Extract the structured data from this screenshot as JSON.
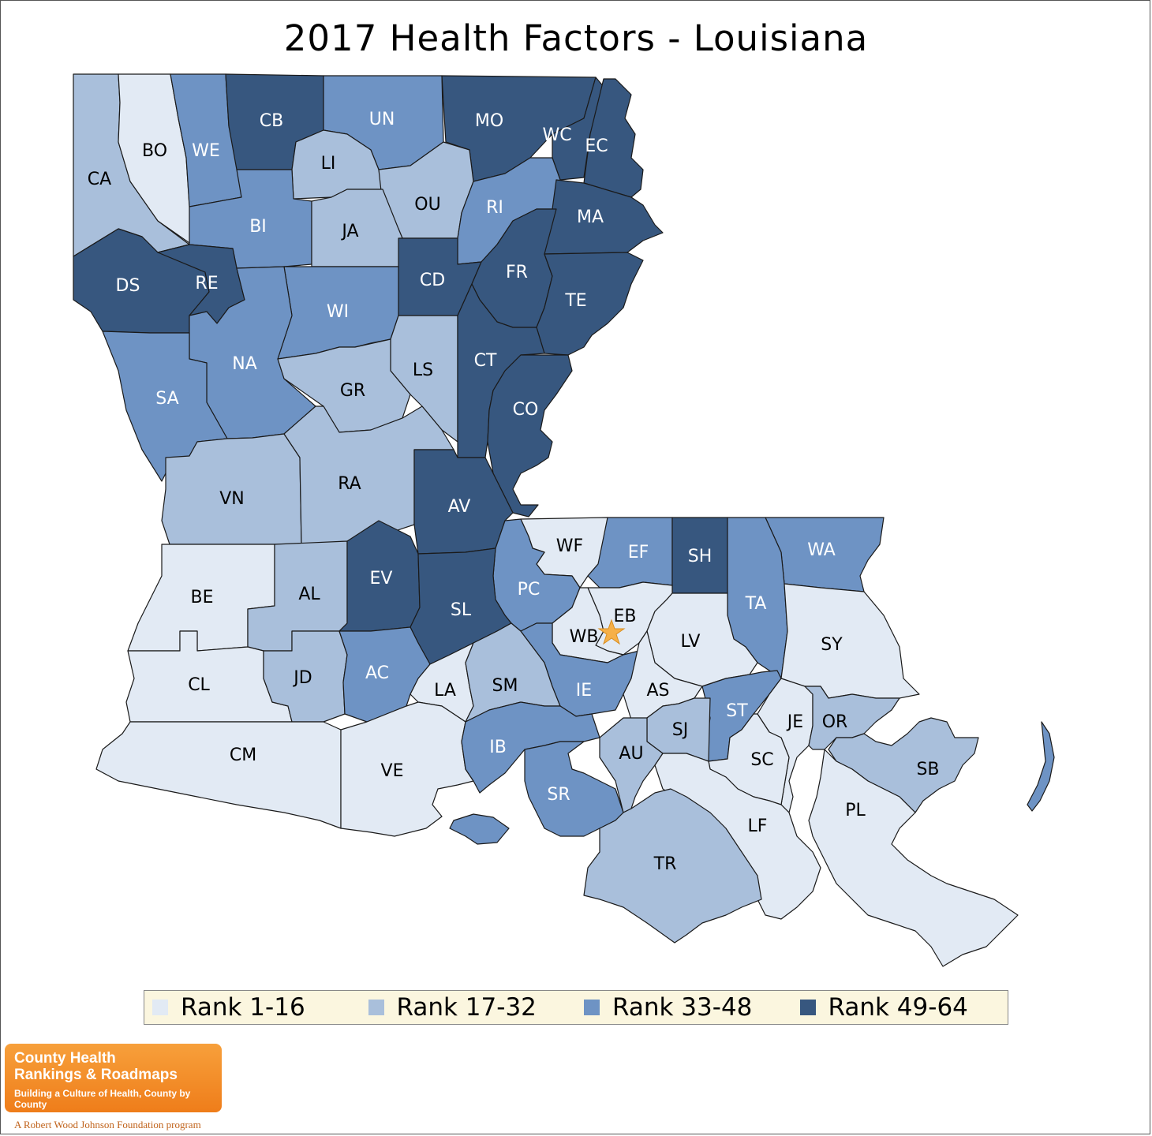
{
  "title": "2017 Health Factors - Louisiana",
  "colors": {
    "rank_1_16": "#e2eaf4",
    "rank_17_32": "#a9bfdb",
    "rank_33_48": "#6e93c4",
    "rank_49_64": "#37577f",
    "marker": "#f6b048"
  },
  "legend": [
    {
      "label": "Rank 1-16",
      "color": "#e2eaf4"
    },
    {
      "label": "Rank 17-32",
      "color": "#a9bfdb"
    },
    {
      "label": "Rank 33-48",
      "color": "#6e93c4"
    },
    {
      "label": "Rank 49-64",
      "color": "#37577f"
    }
  ],
  "parishes": [
    {
      "abbr": "CA",
      "rank_group": "17-32"
    },
    {
      "abbr": "BO",
      "rank_group": "1-16"
    },
    {
      "abbr": "WE",
      "rank_group": "33-48"
    },
    {
      "abbr": "CB",
      "rank_group": "49-64"
    },
    {
      "abbr": "UN",
      "rank_group": "33-48"
    },
    {
      "abbr": "MO",
      "rank_group": "49-64"
    },
    {
      "abbr": "WC",
      "rank_group": "49-64"
    },
    {
      "abbr": "EC",
      "rank_group": "49-64"
    },
    {
      "abbr": "LI",
      "rank_group": "17-32"
    },
    {
      "abbr": "OU",
      "rank_group": "17-32"
    },
    {
      "abbr": "RI",
      "rank_group": "33-48"
    },
    {
      "abbr": "MA",
      "rank_group": "49-64"
    },
    {
      "abbr": "BI",
      "rank_group": "33-48"
    },
    {
      "abbr": "JA",
      "rank_group": "17-32"
    },
    {
      "abbr": "DS",
      "rank_group": "49-64"
    },
    {
      "abbr": "RE",
      "rank_group": "49-64"
    },
    {
      "abbr": "CD",
      "rank_group": "49-64"
    },
    {
      "abbr": "FR",
      "rank_group": "49-64"
    },
    {
      "abbr": "TE",
      "rank_group": "49-64"
    },
    {
      "abbr": "WI",
      "rank_group": "33-48"
    },
    {
      "abbr": "NA",
      "rank_group": "33-48"
    },
    {
      "abbr": "LS",
      "rank_group": "17-32"
    },
    {
      "abbr": "CT",
      "rank_group": "49-64"
    },
    {
      "abbr": "SA",
      "rank_group": "33-48"
    },
    {
      "abbr": "GR",
      "rank_group": "17-32"
    },
    {
      "abbr": "CO",
      "rank_group": "49-64"
    },
    {
      "abbr": "VN",
      "rank_group": "17-32"
    },
    {
      "abbr": "RA",
      "rank_group": "17-32"
    },
    {
      "abbr": "AV",
      "rank_group": "49-64"
    },
    {
      "abbr": "WF",
      "rank_group": "1-16"
    },
    {
      "abbr": "EF",
      "rank_group": "33-48"
    },
    {
      "abbr": "SH",
      "rank_group": "49-64"
    },
    {
      "abbr": "WA",
      "rank_group": "33-48"
    },
    {
      "abbr": "BE",
      "rank_group": "1-16"
    },
    {
      "abbr": "AL",
      "rank_group": "17-32"
    },
    {
      "abbr": "EV",
      "rank_group": "49-64"
    },
    {
      "abbr": "PC",
      "rank_group": "33-48"
    },
    {
      "abbr": "EB",
      "rank_group": "1-16"
    },
    {
      "abbr": "TA",
      "rank_group": "33-48"
    },
    {
      "abbr": "SL",
      "rank_group": "49-64"
    },
    {
      "abbr": "WB",
      "rank_group": "1-16"
    },
    {
      "abbr": "LV",
      "rank_group": "1-16"
    },
    {
      "abbr": "SY",
      "rank_group": "1-16"
    },
    {
      "abbr": "CL",
      "rank_group": "1-16"
    },
    {
      "abbr": "JD",
      "rank_group": "17-32"
    },
    {
      "abbr": "AC",
      "rank_group": "33-48"
    },
    {
      "abbr": "LA",
      "rank_group": "1-16"
    },
    {
      "abbr": "SM",
      "rank_group": "17-32"
    },
    {
      "abbr": "IE",
      "rank_group": "33-48"
    },
    {
      "abbr": "AS",
      "rank_group": "1-16"
    },
    {
      "abbr": "ST",
      "rank_group": "33-48"
    },
    {
      "abbr": "JE",
      "rank_group": "1-16"
    },
    {
      "abbr": "OR",
      "rank_group": "17-32"
    },
    {
      "abbr": "SJ",
      "rank_group": "17-32"
    },
    {
      "abbr": "CM",
      "rank_group": "1-16"
    },
    {
      "abbr": "VE",
      "rank_group": "1-16"
    },
    {
      "abbr": "IB",
      "rank_group": "33-48"
    },
    {
      "abbr": "AU",
      "rank_group": "17-32"
    },
    {
      "abbr": "SC",
      "rank_group": "1-16"
    },
    {
      "abbr": "SB",
      "rank_group": "17-32"
    },
    {
      "abbr": "SR",
      "rank_group": "33-48"
    },
    {
      "abbr": "LF",
      "rank_group": "1-16"
    },
    {
      "abbr": "PL",
      "rank_group": "1-16"
    },
    {
      "abbr": "TR",
      "rank_group": "17-32"
    }
  ],
  "marker": {
    "name": "state-capital",
    "near": "EB"
  },
  "logo": {
    "line1": "County Health",
    "line2": "Rankings & Roadmaps",
    "tagline": "Building a Culture of Health, County by County",
    "program": "A Robert Wood Johnson Foundation program"
  }
}
